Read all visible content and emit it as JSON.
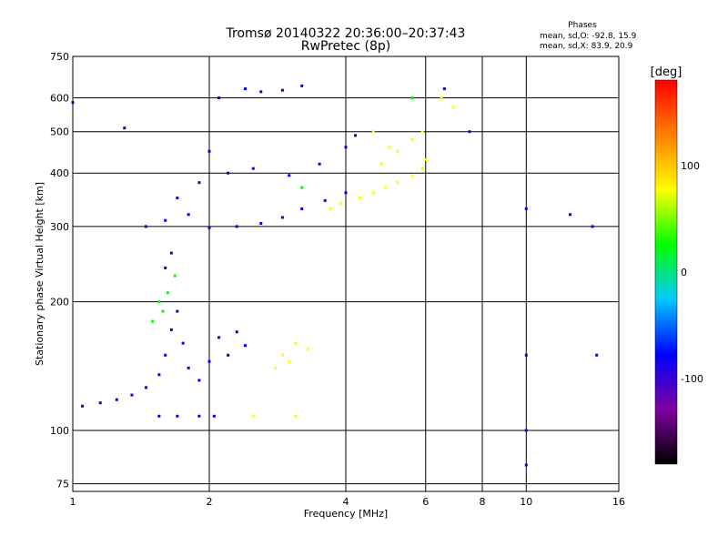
{
  "header": {
    "title_line1": "Tromsø 20140322 20:36:00–20:37:43",
    "title_line2": "RwPretec (8p)",
    "phase_heading": "Phases",
    "phase_line1": "mean, sd,O: -92.8, 15.9",
    "phase_line2": "mean, sd,X:  83.9, 20.9"
  },
  "chart_data": {
    "type": "scatter",
    "xlabel": "Frequency [MHz]",
    "ylabel": "Stationary phase Virtual Height [km]",
    "xscale": "log",
    "yscale": "log",
    "xlim": [
      1,
      16
    ],
    "ylim": [
      72,
      750
    ],
    "xticks": [
      1,
      2,
      4,
      6,
      8,
      10,
      16
    ],
    "yticks": [
      75,
      100,
      200,
      300,
      400,
      500,
      600,
      750
    ],
    "grid": true,
    "colorbar": {
      "label": "[deg]",
      "range": [
        -180,
        180
      ],
      "ticks": [
        100,
        0,
        -100
      ],
      "colormap": [
        "#000000",
        "#8000a0",
        "#0000ff",
        "#00c8ff",
        "#00ff00",
        "#ffff00",
        "#ff8000",
        "#ff0000"
      ]
    },
    "series": [
      {
        "color_phase": -100,
        "points": [
          [
            1.05,
            114
          ],
          [
            1.15,
            116
          ],
          [
            1.25,
            118
          ],
          [
            1.35,
            121
          ],
          [
            1.45,
            126
          ],
          [
            1.55,
            135
          ],
          [
            1.6,
            150
          ],
          [
            1.65,
            172
          ],
          [
            1.7,
            190
          ],
          [
            1.75,
            160
          ],
          [
            1.8,
            140
          ],
          [
            1.9,
            131
          ],
          [
            2.0,
            145
          ],
          [
            2.1,
            165
          ],
          [
            2.2,
            150
          ],
          [
            2.3,
            170
          ],
          [
            2.4,
            158
          ],
          [
            1.55,
            108
          ],
          [
            1.7,
            108
          ],
          [
            1.9,
            108
          ],
          [
            2.05,
            108
          ],
          [
            1.6,
            240
          ],
          [
            1.65,
            260
          ],
          [
            1.45,
            300
          ],
          [
            1.6,
            310
          ],
          [
            1.8,
            320
          ],
          [
            2.0,
            298
          ],
          [
            2.3,
            300
          ],
          [
            2.6,
            305
          ],
          [
            2.9,
            315
          ],
          [
            3.2,
            330
          ],
          [
            3.6,
            345
          ],
          [
            4.0,
            360
          ],
          [
            1.7,
            350
          ],
          [
            1.9,
            380
          ],
          [
            2.2,
            400
          ],
          [
            2.5,
            410
          ],
          [
            3.0,
            395
          ],
          [
            3.5,
            420
          ],
          [
            2.0,
            450
          ],
          [
            2.1,
            600
          ],
          [
            2.4,
            630
          ],
          [
            2.6,
            620
          ],
          [
            2.9,
            625
          ],
          [
            3.2,
            640
          ],
          [
            4.0,
            460
          ],
          [
            4.2,
            490
          ],
          [
            1.3,
            510
          ],
          [
            1.0,
            585
          ],
          [
            10,
            100
          ],
          [
            10,
            330
          ],
          [
            10,
            150
          ],
          [
            10,
            83
          ],
          [
            14.3,
            150
          ],
          [
            12.5,
            320
          ],
          [
            14.0,
            300
          ],
          [
            6.6,
            630
          ],
          [
            7.5,
            500
          ]
        ]
      },
      {
        "color_phase": 100,
        "points": [
          [
            4.3,
            350
          ],
          [
            4.6,
            360
          ],
          [
            4.9,
            370
          ],
          [
            5.2,
            380
          ],
          [
            5.6,
            395
          ],
          [
            5.9,
            410
          ],
          [
            6.0,
            430
          ],
          [
            4.8,
            420
          ],
          [
            5.2,
            450
          ],
          [
            5.6,
            480
          ],
          [
            5.9,
            500
          ],
          [
            4.6,
            500
          ],
          [
            5.0,
            460
          ],
          [
            3.9,
            340
          ],
          [
            3.7,
            330
          ],
          [
            2.9,
            150
          ],
          [
            3.1,
            160
          ],
          [
            3.3,
            155
          ],
          [
            3.0,
            145
          ],
          [
            2.8,
            140
          ],
          [
            2.5,
            108
          ],
          [
            3.1,
            108
          ],
          [
            6.5,
            600
          ],
          [
            6.9,
            570
          ]
        ]
      },
      {
        "color_phase": 0,
        "points": [
          [
            1.55,
            200
          ],
          [
            1.58,
            190
          ],
          [
            1.62,
            210
          ],
          [
            1.5,
            180
          ],
          [
            1.68,
            230
          ],
          [
            3.2,
            370
          ],
          [
            5.6,
            600
          ]
        ]
      }
    ]
  }
}
